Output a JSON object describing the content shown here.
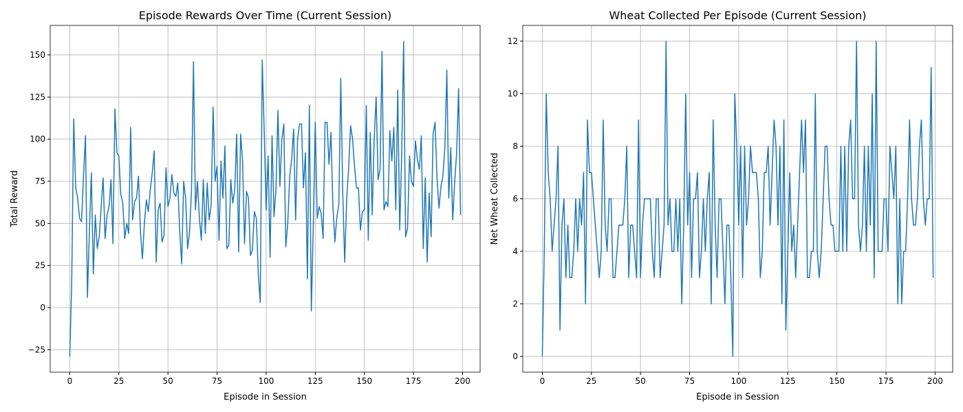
{
  "chart_data": [
    {
      "type": "line",
      "title": "Episode Rewards Over Time (Current Session)",
      "xlabel": "Episode in Session",
      "ylabel": "Total Reward",
      "color": "#1f77b4",
      "grid": true,
      "xlim": [
        -9.95,
        208.95
      ],
      "ylim": [
        -38.3,
        167.5
      ],
      "xticks": [
        0,
        25,
        50,
        75,
        100,
        125,
        150,
        175,
        200
      ],
      "yticks": [
        {
          "value": -25,
          "label": "−25"
        },
        0,
        25,
        50,
        75,
        100,
        125,
        150
      ],
      "x": [
        0,
        1,
        2,
        3,
        4,
        5,
        6,
        7,
        8,
        9,
        10,
        11,
        12,
        13,
        14,
        15,
        16,
        17,
        18,
        19,
        20,
        21,
        22,
        23,
        24,
        25,
        26,
        27,
        28,
        29,
        30,
        31,
        32,
        33,
        34,
        35,
        36,
        37,
        38,
        39,
        40,
        41,
        42,
        43,
        44,
        45,
        46,
        47,
        48,
        49,
        50,
        51,
        52,
        53,
        54,
        55,
        56,
        57,
        58,
        59,
        60,
        61,
        62,
        63,
        64,
        65,
        66,
        67,
        68,
        69,
        70,
        71,
        72,
        73,
        74,
        75,
        76,
        77,
        78,
        79,
        80,
        81,
        82,
        83,
        84,
        85,
        86,
        87,
        88,
        89,
        90,
        91,
        92,
        93,
        94,
        95,
        96,
        97,
        98,
        99,
        100,
        101,
        102,
        103,
        104,
        105,
        106,
        107,
        108,
        109,
        110,
        111,
        112,
        113,
        114,
        115,
        116,
        117,
        118,
        119,
        120,
        121,
        122,
        123,
        124,
        125,
        126,
        127,
        128,
        129,
        130,
        131,
        132,
        133,
        134,
        135,
        136,
        137,
        138,
        139,
        140,
        141,
        142,
        143,
        144,
        145,
        146,
        147,
        148,
        149,
        150,
        151,
        152,
        153,
        154,
        155,
        156,
        157,
        158,
        159,
        160,
        161,
        162,
        163,
        164,
        165,
        166,
        167,
        168,
        169,
        170,
        171,
        172,
        173,
        174,
        175,
        176,
        177,
        178,
        179,
        180,
        181,
        182,
        183,
        184,
        185,
        186,
        187,
        188,
        189,
        190,
        191,
        192,
        193,
        194,
        195,
        196,
        197,
        198,
        199
      ],
      "values": [
        -29,
        15,
        112,
        72,
        65,
        53,
        51,
        78,
        102,
        6,
        45,
        80,
        20,
        55,
        35,
        42,
        60,
        77,
        41,
        55,
        60,
        76,
        38,
        118,
        92,
        90,
        67,
        62,
        41,
        50,
        44,
        107,
        52,
        63,
        65,
        78,
        45,
        29,
        50,
        64,
        57,
        70,
        80,
        93,
        27,
        58,
        62,
        39,
        43,
        83,
        60,
        65,
        79,
        68,
        66,
        74,
        45,
        26,
        75,
        65,
        35,
        45,
        70,
        146,
        58,
        75,
        53,
        40,
        76,
        44,
        74,
        52,
        61,
        119,
        75,
        84,
        40,
        87,
        65,
        96,
        35,
        37,
        76,
        62,
        70,
        103,
        33,
        103,
        87,
        38,
        69,
        65,
        31,
        34,
        57,
        53,
        20,
        3,
        147,
        105,
        58,
        90,
        30,
        102,
        54,
        70,
        117,
        72,
        100,
        109,
        36,
        50,
        78,
        88,
        106,
        52,
        100,
        109,
        109,
        71,
        92,
        17,
        120,
        -2,
        48,
        110,
        53,
        60,
        56,
        41,
        110,
        110,
        85,
        104,
        60,
        39,
        54,
        61,
        136,
        68,
        27,
        64,
        83,
        108,
        100,
        84,
        71,
        71,
        46,
        57,
        58,
        120,
        40,
        104,
        55,
        100,
        125,
        76,
        82,
        152,
        58,
        63,
        60,
        105,
        87,
        107,
        58,
        129,
        46,
        90,
        158,
        42,
        47,
        90,
        75,
        72,
        99,
        88,
        82,
        102,
        35,
        77,
        27,
        68,
        42,
        103,
        110,
        77,
        59,
        72,
        78,
        95,
        141,
        65,
        95,
        52,
        75,
        92,
        130,
        55
      ]
    },
    {
      "type": "line",
      "title": "Wheat Collected Per Episode (Current Session)",
      "xlabel": "Episode in Session",
      "ylabel": "Net Wheat Collected",
      "color": "#1f77b4",
      "grid": true,
      "xlim": [
        -9.95,
        208.95
      ],
      "ylim": [
        -0.6,
        12.6
      ],
      "xticks": [
        0,
        25,
        50,
        75,
        100,
        125,
        150,
        175,
        200
      ],
      "yticks": [
        0,
        2,
        4,
        6,
        8,
        10,
        12
      ],
      "x": [
        0,
        1,
        2,
        3,
        4,
        5,
        6,
        7,
        8,
        9,
        10,
        11,
        12,
        13,
        14,
        15,
        16,
        17,
        18,
        19,
        20,
        21,
        22,
        23,
        24,
        25,
        26,
        27,
        28,
        29,
        30,
        31,
        32,
        33,
        34,
        35,
        36,
        37,
        38,
        39,
        40,
        41,
        42,
        43,
        44,
        45,
        46,
        47,
        48,
        49,
        50,
        51,
        52,
        53,
        54,
        55,
        56,
        57,
        58,
        59,
        60,
        61,
        62,
        63,
        64,
        65,
        66,
        67,
        68,
        69,
        70,
        71,
        72,
        73,
        74,
        75,
        76,
        77,
        78,
        79,
        80,
        81,
        82,
        83,
        84,
        85,
        86,
        87,
        88,
        89,
        90,
        91,
        92,
        93,
        94,
        95,
        96,
        97,
        98,
        99,
        100,
        101,
        102,
        103,
        104,
        105,
        106,
        107,
        108,
        109,
        110,
        111,
        112,
        113,
        114,
        115,
        116,
        117,
        118,
        119,
        120,
        121,
        122,
        123,
        124,
        125,
        126,
        127,
        128,
        129,
        130,
        131,
        132,
        133,
        134,
        135,
        136,
        137,
        138,
        139,
        140,
        141,
        142,
        143,
        144,
        145,
        146,
        147,
        148,
        149,
        150,
        151,
        152,
        153,
        154,
        155,
        156,
        157,
        158,
        159,
        160,
        161,
        162,
        163,
        164,
        165,
        166,
        167,
        168,
        169,
        170,
        171,
        172,
        173,
        174,
        175,
        176,
        177,
        178,
        179,
        180,
        181,
        182,
        183,
        184,
        185,
        186,
        187,
        188,
        189,
        190,
        191,
        192,
        193,
        194,
        195,
        196,
        197,
        198,
        199
      ],
      "values": [
        0,
        4,
        10,
        7,
        6,
        4,
        5,
        6,
        8,
        1,
        5,
        6,
        3,
        5,
        3,
        3,
        4,
        6,
        4,
        6,
        5,
        7,
        2,
        9,
        7,
        7,
        6,
        5,
        4,
        3,
        4,
        9,
        5,
        4,
        6,
        6,
        3,
        3,
        4,
        5,
        5,
        5,
        6,
        8,
        3,
        5,
        5,
        4,
        3,
        9,
        3,
        5,
        6,
        6,
        6,
        6,
        4,
        3,
        6,
        6,
        3,
        4,
        5,
        12,
        5,
        6,
        4,
        4,
        6,
        4,
        6,
        2,
        5,
        10,
        5,
        7,
        3,
        6,
        6,
        7,
        3,
        4,
        6,
        4,
        6,
        7,
        2,
        9,
        5,
        3,
        6,
        6,
        4,
        2,
        5,
        5,
        3,
        0,
        10,
        8,
        5,
        8,
        3,
        8,
        5,
        6,
        8,
        7,
        7,
        7,
        6,
        3,
        4,
        7,
        7,
        8,
        5,
        7,
        9,
        8,
        5,
        8,
        2,
        9,
        1,
        4,
        7,
        4,
        5,
        3,
        5,
        7,
        9,
        7,
        9,
        3,
        3,
        4,
        4,
        10,
        4,
        3,
        4,
        6,
        8,
        8,
        6,
        5,
        5,
        4,
        4,
        4,
        8,
        4,
        8,
        4,
        8,
        9,
        6,
        6,
        12,
        5,
        4,
        5,
        8,
        4,
        8,
        5,
        10,
        3,
        12,
        4,
        4,
        4,
        6,
        6,
        4,
        8,
        7,
        6,
        8,
        2,
        6,
        2,
        4,
        4,
        6,
        9,
        6,
        5,
        5,
        6,
        8,
        9,
        6,
        5,
        6,
        6,
        11,
        3
      ]
    }
  ]
}
